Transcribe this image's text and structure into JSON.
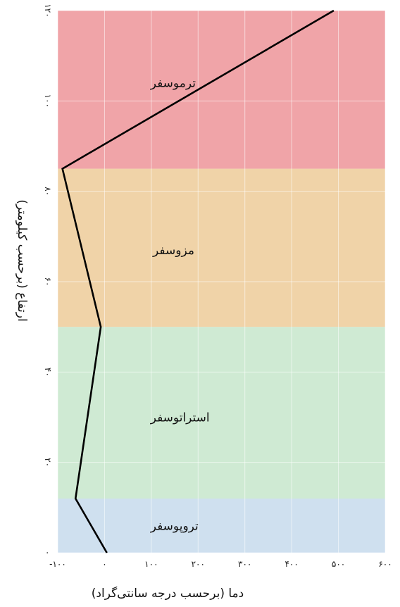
{
  "chart_data": {
    "type": "line",
    "xlabel": "دما (برحسب درجه سانتی‌گراد)",
    "ylabel": "ارتفاع (برحسب کیلومتر)",
    "xlim": [
      -100,
      600
    ],
    "ylim": [
      0,
      120
    ],
    "x_ticks": [
      {
        "value": -100,
        "label": "-۱۰۰"
      },
      {
        "value": 0,
        "label": "۰"
      },
      {
        "value": 100,
        "label": "۱۰۰"
      },
      {
        "value": 200,
        "label": "۲۰۰"
      },
      {
        "value": 300,
        "label": "۳۰۰"
      },
      {
        "value": 400,
        "label": "۴۰۰"
      },
      {
        "value": 500,
        "label": "۵۰۰"
      },
      {
        "value": 600,
        "label": "۶۰۰"
      }
    ],
    "y_ticks": [
      {
        "value": 0,
        "label": "۰"
      },
      {
        "value": 20,
        "label": "۲۰"
      },
      {
        "value": 40,
        "label": "۴۰"
      },
      {
        "value": 60,
        "label": "۶۰"
      },
      {
        "value": 80,
        "label": "۸۰"
      },
      {
        "value": 100,
        "label": "۱۰۰"
      },
      {
        "value": 120,
        "label": "۱۲۰"
      }
    ],
    "grid": true,
    "layers": [
      {
        "name": "تروپوسفر",
        "from": 0,
        "to": 12,
        "color": "#cfe0ef",
        "label_x": 20,
        "label_y": 6
      },
      {
        "name": "استراتوسفر",
        "from": 12,
        "to": 50,
        "color": "#cfead3",
        "label_x": 20,
        "label_y": 30
      },
      {
        "name": "مزوسفر",
        "from": 50,
        "to": 85,
        "color": "#f0d3a8",
        "label_x": 25,
        "label_y": 67
      },
      {
        "name": "ترموسفر",
        "from": 85,
        "to": 120,
        "color": "#f0a4a8",
        "label_x": 20,
        "label_y": 104
      }
    ],
    "series": [
      {
        "color": "#000000",
        "x": [
          5,
          -62,
          -8,
          -90,
          490
        ],
        "y": [
          0,
          12,
          50,
          85,
          120
        ]
      }
    ]
  }
}
